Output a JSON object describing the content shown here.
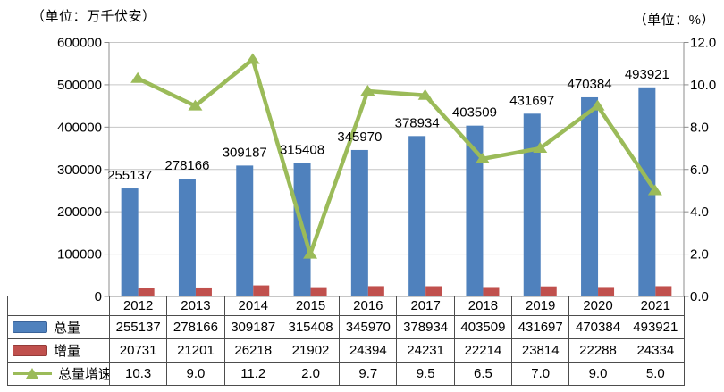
{
  "units": {
    "left": "（单位：万千伏安）",
    "right": "（单位：%）"
  },
  "colors": {
    "bar_total": "#4F81BD",
    "bar_total_border": "#3A6399",
    "bar_increment": "#C0504D",
    "bar_increment_border": "#943B38",
    "line_growth": "#9BBB59",
    "gridline": "#C6C6C6",
    "axis": "#8C8C8C",
    "table_border": "#4d4d4d",
    "text": "#000000"
  },
  "chart_data": {
    "type": "bar",
    "subtype": "bar+line-combo",
    "categories": [
      "2012",
      "2013",
      "2014",
      "2015",
      "2016",
      "2017",
      "2018",
      "2019",
      "2020",
      "2021"
    ],
    "series": [
      {
        "name": "总量",
        "type": "bar",
        "axis": "left",
        "values": [
          255137,
          278166,
          309187,
          315408,
          345970,
          378934,
          403509,
          431697,
          470384,
          493921
        ],
        "data_labels_shown": true
      },
      {
        "name": "增量",
        "type": "bar",
        "axis": "left",
        "values": [
          20731,
          21201,
          26218,
          21902,
          24394,
          24231,
          22214,
          23814,
          22288,
          24334
        ],
        "data_labels_shown": false
      },
      {
        "name": "总量增速",
        "type": "line",
        "axis": "right",
        "marker": "triangle",
        "values": [
          10.3,
          9.0,
          11.2,
          2.0,
          9.7,
          9.5,
          6.5,
          7.0,
          9.0,
          5.0
        ],
        "data_labels_shown": false
      }
    ],
    "left_axis": {
      "min": 0,
      "max": 600000,
      "step": 100000,
      "unit": "万千伏安"
    },
    "right_axis": {
      "min": 0,
      "max": 12,
      "step": 2,
      "decimals": 1,
      "unit": "%"
    },
    "grid": true,
    "legend_position": "bottom-data-table"
  }
}
